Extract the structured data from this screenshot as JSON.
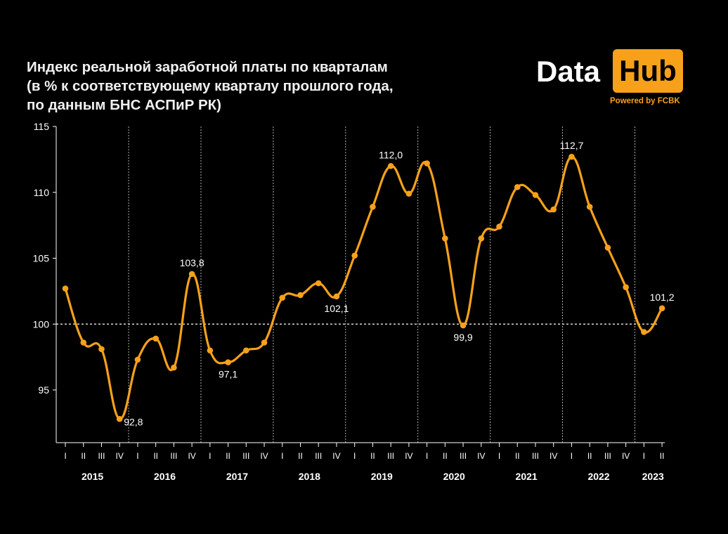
{
  "title_lines": [
    "Индекс реальной заработной платы по кварталам",
    "(в % к соответствующему кварталу прошлого года,",
    "по данным БНС АСПиР РК)"
  ],
  "logo": {
    "data": "Data",
    "hub": "Hub",
    "powered": "Powered by FCBK"
  },
  "colors": {
    "line": "#f7a11a",
    "background": "#000000",
    "axis": "#ffffff"
  },
  "chart_data": {
    "type": "line",
    "ylim": [
      91,
      115
    ],
    "y_ticks": [
      95,
      100,
      105,
      110,
      115
    ],
    "reference_line": 100,
    "quarter_labels": [
      "I",
      "II",
      "III",
      "IV",
      "I",
      "II",
      "III",
      "IV",
      "I",
      "II",
      "III",
      "IV",
      "I",
      "II",
      "III",
      "IV",
      "I",
      "II",
      "III",
      "IV",
      "I",
      "II",
      "III",
      "IV",
      "I",
      "II",
      "III",
      "IV",
      "I",
      "II",
      "III",
      "IV",
      "I",
      "II"
    ],
    "years": [
      {
        "label": "2015",
        "quarters": 4
      },
      {
        "label": "2016",
        "quarters": 4
      },
      {
        "label": "2017",
        "quarters": 4
      },
      {
        "label": "2018",
        "quarters": 4
      },
      {
        "label": "2019",
        "quarters": 4
      },
      {
        "label": "2020",
        "quarters": 4
      },
      {
        "label": "2021",
        "quarters": 4
      },
      {
        "label": "2022",
        "quarters": 4
      },
      {
        "label": "2023",
        "quarters": 2
      }
    ],
    "values": [
      102.7,
      98.6,
      98.1,
      92.8,
      97.3,
      98.9,
      96.7,
      103.8,
      98.0,
      97.1,
      98.0,
      98.6,
      102.0,
      102.2,
      103.1,
      102.1,
      105.2,
      108.9,
      112.0,
      109.9,
      112.2,
      106.5,
      99.9,
      106.5,
      107.4,
      110.4,
      109.8,
      108.7,
      112.7,
      108.9,
      105.8,
      102.8,
      99.4,
      101.2
    ],
    "data_labels": [
      {
        "index": 3,
        "text": "92,8",
        "pos": "right"
      },
      {
        "index": 7,
        "text": "103,8",
        "pos": "above"
      },
      {
        "index": 9,
        "text": "97,1",
        "pos": "below"
      },
      {
        "index": 15,
        "text": "102,1",
        "pos": "below"
      },
      {
        "index": 18,
        "text": "112,0",
        "pos": "above"
      },
      {
        "index": 22,
        "text": "99,9",
        "pos": "below"
      },
      {
        "index": 28,
        "text": "112,7",
        "pos": "above"
      },
      {
        "index": 33,
        "text": "101,2",
        "pos": "above"
      }
    ],
    "grid": false,
    "year_separators": "dashed"
  }
}
